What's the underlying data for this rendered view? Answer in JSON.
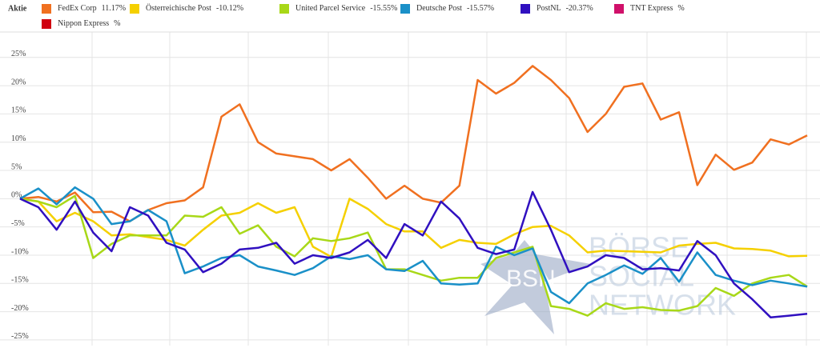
{
  "chart_data": {
    "type": "line",
    "legend_title": "Aktie",
    "categories": [
      null,
      null,
      null,
      null,
      null,
      null,
      null,
      null,
      null,
      null,
      null,
      null,
      null,
      null,
      null,
      null,
      null,
      null,
      null,
      null,
      null,
      null,
      null,
      null,
      null,
      null,
      null,
      null,
      null,
      null,
      null,
      null,
      null,
      null,
      null,
      null,
      null,
      null,
      null,
      null,
      null,
      null,
      null,
      null
    ],
    "ylim": [
      -26,
      29.5
    ],
    "yticks": [
      {
        "value": 25,
        "label": "25%"
      },
      {
        "value": 20,
        "label": "20%"
      },
      {
        "value": 15,
        "label": "15%"
      },
      {
        "value": 10,
        "label": "10%"
      },
      {
        "value": 5,
        "label": "5%"
      },
      {
        "value": 0,
        "label": "0%"
      },
      {
        "value": -5,
        "label": "-5%"
      },
      {
        "value": -10,
        "label": "-10%"
      },
      {
        "value": -15,
        "label": "-15%"
      },
      {
        "value": -20,
        "label": "-20%"
      },
      {
        "value": -25,
        "label": "-25%"
      }
    ],
    "grid": true,
    "series": [
      {
        "name": "FedEx Corp",
        "legend_label": "11.17%",
        "color": "#f07020",
        "values": [
          0,
          0.3,
          -0.5,
          1.1,
          -2.4,
          -2.3,
          -4,
          -2,
          -0.8,
          -0.3,
          2,
          14.5,
          16.7,
          10,
          8,
          7.5,
          7,
          5,
          7,
          3.7,
          0,
          2.3,
          0,
          -0.7,
          2.3,
          21,
          18.6,
          20.5,
          23.5,
          21,
          17.8,
          11.8,
          15,
          19.8,
          20.4,
          14,
          15.3,
          2.4,
          7.8,
          5.1,
          6.4,
          10.5,
          9.6,
          11.2
        ]
      },
      {
        "name": "Österreichische Post",
        "legend_label": "-10.12%",
        "color": "#f5d000",
        "values": [
          0,
          -0.5,
          -4,
          -2.5,
          -4,
          -6.5,
          -6.3,
          -6.8,
          -7.3,
          -8.3,
          -5.5,
          -3,
          -2.5,
          -0.8,
          -2.5,
          -1.5,
          -8.5,
          -10.3,
          0,
          -1.8,
          -4.5,
          -5.8,
          -5.8,
          -8.7,
          -7.3,
          -7.8,
          -8,
          -6.3,
          -5,
          -4.8,
          -6.5,
          -9.5,
          -9.2,
          -9.3,
          -9.4,
          -9.5,
          -8.3,
          -8,
          -7.8,
          -8.8,
          -8.9,
          -9.2,
          -10.2,
          -10.12
        ]
      },
      {
        "name": "United Parcel Service",
        "legend_label": "-15.55%",
        "color": "#a8d818",
        "values": [
          0,
          -0.5,
          -1.5,
          0.5,
          -10.5,
          -8,
          -6.5,
          -6.5,
          -6.5,
          -3,
          -3.2,
          -1.5,
          -6.2,
          -4.7,
          -8.5,
          -10.2,
          -7,
          -7.5,
          -7,
          -6,
          -12.5,
          -12.5,
          -13.5,
          -14.5,
          -14,
          -14,
          -10.5,
          -9.5,
          -8.5,
          -19,
          -19.5,
          -20.7,
          -18.5,
          -19.5,
          -19.2,
          -19.7,
          -19.8,
          -19,
          -15.8,
          -17.2,
          -15,
          -14,
          -13.5,
          -15.55
        ]
      },
      {
        "name": "Deutsche Post",
        "legend_label": "-15.57%",
        "color": "#1a90c8",
        "values": [
          0,
          1.8,
          -1,
          2,
          0,
          -4.5,
          -4,
          -2,
          -4,
          -13.2,
          -12,
          -10.5,
          -10,
          -12,
          -12.7,
          -13.5,
          -12.3,
          -10.2,
          -10.7,
          -10,
          -12.5,
          -12.8,
          -11,
          -15,
          -15.2,
          -15,
          -8.5,
          -10,
          -8.8,
          -16.5,
          -18.5,
          -15,
          -13.5,
          -11.8,
          -13.3,
          -10.5,
          -14.7,
          -9.5,
          -13.5,
          -14.5,
          -15.3,
          -14.5,
          -15,
          -15.57
        ]
      },
      {
        "name": "PostNL",
        "legend_label": "-20.37%",
        "color": "#3010c0",
        "values": [
          0,
          -1.5,
          -5.5,
          -0.5,
          -6,
          -9.3,
          -1.5,
          -3,
          -7.8,
          -9,
          -13,
          -11.5,
          -9,
          -8.7,
          -7.8,
          -11.5,
          -10,
          -10.5,
          -9.5,
          -7.3,
          -10.5,
          -4.5,
          -6.5,
          -0.5,
          -3.5,
          -8.7,
          -9.8,
          -9,
          1.2,
          -5.5,
          -13,
          -12,
          -10,
          -10.5,
          -12.5,
          -12.3,
          -12.7,
          -7.5,
          -10,
          -15,
          -17.8,
          -21,
          -20.7,
          -20.37
        ]
      },
      {
        "name": "TNT Express",
        "legend_label": "%",
        "color": "#d0106a",
        "values": [
          null,
          null,
          null,
          null,
          null,
          null,
          null,
          null,
          null,
          null,
          null,
          null,
          null,
          null,
          null,
          null,
          null,
          null,
          null,
          null,
          null,
          null,
          null,
          null,
          null,
          null,
          null,
          null,
          null,
          null,
          null,
          null,
          null,
          null,
          null,
          null,
          null,
          null,
          null,
          null,
          null,
          null,
          null,
          null
        ]
      },
      {
        "name": "Nippon Express",
        "legend_label": "%",
        "color": "#d00010",
        "values": [
          null,
          null,
          null,
          null,
          null,
          null,
          null,
          null,
          null,
          null,
          null,
          null,
          null,
          null,
          null,
          null,
          null,
          null,
          null,
          null,
          null,
          null,
          null,
          null,
          null,
          null,
          null,
          null,
          null,
          null,
          null,
          null,
          null,
          null,
          null,
          null,
          null,
          null,
          null,
          null,
          null,
          null,
          null,
          null
        ]
      }
    ]
  },
  "watermark": {
    "logo": "BSN",
    "line1": "BÖRSE",
    "line2": "SOCIAL",
    "line3": "NETWORK"
  }
}
